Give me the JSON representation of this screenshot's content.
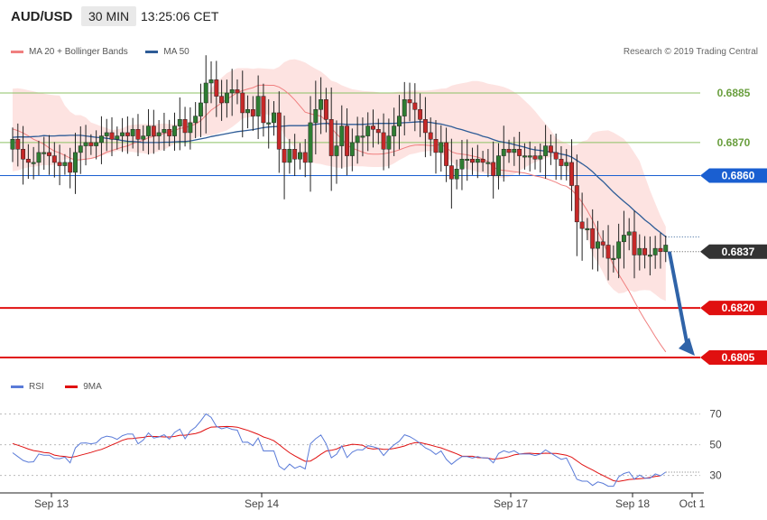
{
  "header": {
    "symbol": "AUD/USD",
    "timeframe": "30 MIN",
    "time": "13:25:06 CET"
  },
  "legend_top": {
    "ma_bb_label": "MA 20 + Bollinger Bands",
    "ma50_label": "MA 50",
    "ma_bb_color": "#f07f7f",
    "ma50_color": "#2e5c97"
  },
  "copyright": "Research © 2019 Trading Central",
  "legend_bottom": {
    "rsi_label": "RSI",
    "ma9_label": "9MA",
    "rsi_color": "#5a7bd8",
    "ma9_color": "#e01010"
  },
  "chart_data": [
    {
      "type": "candlestick",
      "y_range": [
        0.6799,
        0.6894
      ],
      "levels": [
        {
          "value": 0.6885,
          "label": "0.6885",
          "style": "green",
          "color": "#8cc265"
        },
        {
          "value": 0.687,
          "label": "0.6870",
          "style": "green",
          "color": "#8cc265"
        },
        {
          "value": 0.686,
          "label": "0.6860",
          "style": "pivot",
          "color": "#1a5fd1"
        },
        {
          "value": 0.6837,
          "label": "0.6837",
          "style": "current",
          "color": "#333333"
        },
        {
          "value": 0.682,
          "label": "0.6820",
          "style": "red",
          "color": "#e01010"
        },
        {
          "value": 0.6805,
          "label": "0.6805",
          "style": "red",
          "color": "#e01010"
        }
      ],
      "closes": [
        0.6871,
        0.6868,
        0.6865,
        0.6864,
        0.6864,
        0.6867,
        0.6867,
        0.6866,
        0.6864,
        0.6863,
        0.6864,
        0.6861,
        0.6867,
        0.6869,
        0.687,
        0.6869,
        0.687,
        0.6872,
        0.6873,
        0.6871,
        0.6872,
        0.6873,
        0.6872,
        0.6874,
        0.6871,
        0.6872,
        0.6875,
        0.6872,
        0.6873,
        0.6874,
        0.6872,
        0.6875,
        0.6877,
        0.6873,
        0.6876,
        0.6878,
        0.6882,
        0.6888,
        0.6889,
        0.6884,
        0.6882,
        0.6885,
        0.6886,
        0.6885,
        0.6879,
        0.688,
        0.6878,
        0.6884,
        0.6876,
        0.6876,
        0.6879,
        0.6868,
        0.6864,
        0.6868,
        0.6865,
        0.6867,
        0.6864,
        0.6876,
        0.688,
        0.6883,
        0.6877,
        0.6866,
        0.6869,
        0.6875,
        0.6866,
        0.687,
        0.6872,
        0.6872,
        0.6875,
        0.6874,
        0.6873,
        0.6868,
        0.6872,
        0.6875,
        0.6878,
        0.6883,
        0.6882,
        0.688,
        0.6877,
        0.6873,
        0.6871,
        0.6867,
        0.687,
        0.6863,
        0.6859,
        0.6862,
        0.6865,
        0.6865,
        0.6864,
        0.6865,
        0.6864,
        0.6864,
        0.686,
        0.6866,
        0.6868,
        0.6867,
        0.6868,
        0.6866,
        0.6866,
        0.6866,
        0.6865,
        0.6866,
        0.6869,
        0.6867,
        0.6865,
        0.6863,
        0.6864,
        0.6857,
        0.6846,
        0.6844,
        0.6844,
        0.6838,
        0.684,
        0.6839,
        0.6835,
        0.6835,
        0.684,
        0.6842,
        0.6843,
        0.6836,
        0.6838,
        0.6836,
        0.6836,
        0.6838,
        0.6837,
        0.6839
      ],
      "ma20": [
        0.68741,
        0.68736,
        0.68729,
        0.6872,
        0.6871,
        0.68703,
        0.68695,
        0.68684,
        0.68674,
        0.68669,
        0.68661,
        0.68653,
        0.68647,
        0.68648,
        0.6865,
        0.68652,
        0.68656,
        0.68663,
        0.68671,
        0.68676,
        0.68681,
        0.68686,
        0.6869,
        0.68697,
        0.68702,
        0.68707,
        0.68715,
        0.68718,
        0.68723,
        0.68728,
        0.68731,
        0.68736,
        0.68743,
        0.68745,
        0.6875,
        0.68756,
        0.68766,
        0.68782,
        0.68798,
        0.68809,
        0.6882,
        0.68831,
        0.68841,
        0.68851,
        0.68857,
        0.68862,
        0.68866,
        0.68873,
        0.68874,
        0.68873,
        0.68873,
        0.68868,
        0.68858,
        0.68845,
        0.68829,
        0.68811,
        0.68792,
        0.68787,
        0.68783,
        0.6878,
        0.68766,
        0.68744,
        0.68726,
        0.68711,
        0.68692,
        0.68683,
        0.68677,
        0.68671,
        0.68666,
        0.68665,
        0.68665,
        0.68666,
        0.68669,
        0.68673,
        0.68678,
        0.68684,
        0.68689,
        0.68692,
        0.68693,
        0.68692,
        0.68691,
        0.68691,
        0.68695,
        0.68685,
        0.68672,
        0.68667,
        0.68665,
        0.68663,
        0.68659,
        0.68656,
        0.6865,
        0.68642,
        0.68626,
        0.68618,
        0.68616,
        0.68614,
        0.68612,
        0.6861,
        0.68608,
        0.68604,
        0.68599,
        0.68596,
        0.68592,
        0.68586,
        0.6858,
        0.68572,
        0.68568,
        0.68557,
        0.6854,
        0.68519,
        0.68494,
        0.68465,
        0.68431,
        0.68398,
        0.68364,
        0.68329,
        0.68302,
        0.68276,
        0.6825,
        0.6822,
        0.68191,
        0.68164,
        0.68139,
        0.68113,
        0.68089,
        0.68067
      ],
      "ma50": [
        0.68716,
        0.68717,
        0.68717,
        0.68717,
        0.68718,
        0.68719,
        0.68721,
        0.6872,
        0.6872,
        0.68721,
        0.68721,
        0.68722,
        0.68722,
        0.68722,
        0.6872,
        0.68718,
        0.68716,
        0.68715,
        0.68713,
        0.68711,
        0.68709,
        0.68706,
        0.68704,
        0.68703,
        0.68702,
        0.687,
        0.687,
        0.687,
        0.687,
        0.68701,
        0.68701,
        0.68702,
        0.68703,
        0.68703,
        0.68705,
        0.68708,
        0.68711,
        0.68714,
        0.68718,
        0.68721,
        0.68724,
        0.68727,
        0.6873,
        0.68733,
        0.68735,
        0.68737,
        0.68739,
        0.68742,
        0.68745,
        0.68747,
        0.68748,
        0.68749,
        0.6875,
        0.68751,
        0.68751,
        0.68751,
        0.68751,
        0.68753,
        0.68755,
        0.68757,
        0.68758,
        0.68757,
        0.68756,
        0.68756,
        0.68755,
        0.68755,
        0.68755,
        0.68755,
        0.68756,
        0.68757,
        0.68758,
        0.68758,
        0.68758,
        0.68758,
        0.68759,
        0.6876,
        0.68761,
        0.68762,
        0.68763,
        0.68762,
        0.68761,
        0.68758,
        0.68756,
        0.68752,
        0.68748,
        0.68743,
        0.68739,
        0.68734,
        0.68729,
        0.68725,
        0.68719,
        0.68715,
        0.68709,
        0.68704,
        0.68701,
        0.68698,
        0.68694,
        0.6869,
        0.68686,
        0.68681,
        0.68678,
        0.68676,
        0.68674,
        0.68671,
        0.68669,
        0.68665,
        0.68662,
        0.68656,
        0.68646,
        0.68636,
        0.68625,
        0.68612,
        0.68596,
        0.68582,
        0.68566,
        0.6855,
        0.68536,
        0.68522,
        0.68509,
        0.68494,
        0.68481,
        0.68466,
        0.68454,
        0.6844,
        0.68428,
        0.68415
      ],
      "bb_upper": [
        0.68863,
        0.68864,
        0.68862,
        0.68858,
        0.68855,
        0.68851,
        0.68848,
        0.68845,
        0.68843,
        0.68842,
        0.68812,
        0.68793,
        0.68783,
        0.68783,
        0.68776,
        0.68761,
        0.68755,
        0.68749,
        0.68744,
        0.68738,
        0.6874,
        0.68743,
        0.68751,
        0.68754,
        0.68755,
        0.68756,
        0.68756,
        0.68755,
        0.68757,
        0.68758,
        0.68756,
        0.68755,
        0.68757,
        0.68763,
        0.68763,
        0.68765,
        0.68788,
        0.68826,
        0.68864,
        0.68881,
        0.68896,
        0.6891,
        0.68918,
        0.68925,
        0.68925,
        0.68925,
        0.68923,
        0.68925,
        0.68924,
        0.68923,
        0.68922,
        0.68929,
        0.68943,
        0.6895,
        0.68952,
        0.68948,
        0.68942,
        0.68932,
        0.68923,
        0.68915,
        0.68902,
        0.68887,
        0.68882,
        0.68873,
        0.68867,
        0.68861,
        0.68859,
        0.68856,
        0.68855,
        0.68854,
        0.68852,
        0.68849,
        0.68851,
        0.68852,
        0.68854,
        0.68853,
        0.68857,
        0.68857,
        0.68857,
        0.68857,
        0.68858,
        0.6886,
        0.68863,
        0.68864,
        0.68872,
        0.68876,
        0.68879,
        0.68882,
        0.68886,
        0.68886,
        0.68883,
        0.68878,
        0.68875,
        0.68872,
        0.68868,
        0.68862,
        0.68853,
        0.68842,
        0.68827,
        0.68812,
        0.68795,
        0.68775,
        0.68757,
        0.68737,
        0.68714,
        0.68705,
        0.68698,
        0.6869,
        0.68693,
        0.68704,
        0.68708,
        0.68729,
        0.68734,
        0.68736,
        0.68737,
        0.6873,
        0.68721,
        0.68711,
        0.68693,
        0.68669,
        0.68644,
        0.68599,
        0.68555,
        0.68516,
        0.68478,
        0.68446
      ],
      "bb_lower": [
        0.68613,
        0.68616,
        0.68621,
        0.68625,
        0.68627,
        0.68629,
        0.68632,
        0.68631,
        0.68633,
        0.68638,
        0.68651,
        0.68647,
        0.68645,
        0.68647,
        0.68651,
        0.68653,
        0.68655,
        0.68661,
        0.68665,
        0.68669,
        0.68675,
        0.68675,
        0.68673,
        0.68672,
        0.68669,
        0.68668,
        0.68665,
        0.68669,
        0.68674,
        0.68679,
        0.68687,
        0.68696,
        0.68698,
        0.68701,
        0.68706,
        0.68715,
        0.6872,
        0.68721,
        0.68722,
        0.68726,
        0.68732,
        0.68737,
        0.68747,
        0.68759,
        0.68773,
        0.68776,
        0.68777,
        0.68786,
        0.68787,
        0.68784,
        0.68778,
        0.68751,
        0.68722,
        0.68701,
        0.68685,
        0.68666,
        0.68649,
        0.68642,
        0.68637,
        0.68635,
        0.68631,
        0.68628,
        0.68624,
        0.68624,
        0.68626,
        0.68629,
        0.68628,
        0.68628,
        0.68627,
        0.68626,
        0.68626,
        0.68627,
        0.68629,
        0.68637,
        0.68647,
        0.68655,
        0.68664,
        0.68667,
        0.68671,
        0.68673,
        0.68675,
        0.68672,
        0.68668,
        0.68656,
        0.68642,
        0.68629,
        0.68625,
        0.6862,
        0.68616,
        0.68612,
        0.68606,
        0.68606,
        0.68597,
        0.68592,
        0.68594,
        0.68596,
        0.68604,
        0.68615,
        0.68624,
        0.68633,
        0.68641,
        0.68646,
        0.68653,
        0.68657,
        0.68658,
        0.68646,
        0.68627,
        0.68575,
        0.68513,
        0.68459,
        0.68417,
        0.6836,
        0.68336,
        0.68307,
        0.68273,
        0.68255,
        0.68244,
        0.68246,
        0.68254,
        0.68248,
        0.68253,
        0.68254,
        0.68253,
        0.68241,
        0.68228,
        0.68221
      ],
      "series": [
        {
          "name": "MA 20 + Bollinger Bands"
        },
        {
          "name": "MA 50"
        }
      ],
      "projection": {
        "from": 0.6837,
        "to": 0.6805
      }
    },
    {
      "type": "line",
      "ylim": [
        21,
        78
      ],
      "yticks": [
        70,
        50,
        30
      ],
      "x_labels": [
        "Sep 13",
        "Sep 14",
        "Sep 17",
        "Sep 18",
        "Oct 1"
      ],
      "rsi": [
        44.8,
        42.3,
        39.8,
        38.6,
        38.9,
        44.0,
        43.2,
        43.2,
        41.1,
        40.9,
        42.0,
        38.2,
        47.9,
        51.0,
        51.2,
        50.6,
        51.2,
        54.4,
        55.6,
        55.0,
        53.5,
        55.9,
        57.0,
        56.9,
        50.6,
        53.1,
        57.7,
        54.4,
        55.1,
        56.5,
        53.7,
        58.0,
        60.2,
        53.9,
        58.9,
        61.5,
        65.5,
        70.1,
        67.8,
        62.0,
        60.4,
        61.3,
        60.0,
        59.5,
        51.6,
        51.7,
        49.4,
        54.4,
        46.0,
        46.0,
        46.0,
        36.1,
        33.7,
        37.4,
        34.7,
        36.1,
        34.2,
        50.6,
        53.9,
        56.4,
        50.6,
        41.5,
        43.8,
        49.3,
        41.7,
        45.2,
        46.8,
        46.6,
        49.4,
        48.7,
        47.6,
        43.0,
        46.9,
        49.9,
        52.3,
        56.5,
        55.3,
        53.3,
        50.9,
        48.0,
        46.4,
        43.7,
        46.0,
        40.5,
        37.3,
        40.0,
        42.3,
        42.3,
        41.4,
        42.3,
        41.4,
        41.4,
        38.2,
        44.3,
        46.1,
        45.0,
        46.1,
        44.0,
        44.0,
        44.0,
        43.0,
        44.0,
        46.7,
        44.6,
        42.5,
        40.5,
        41.4,
        34.8,
        27.5,
        26.3,
        26.3,
        23.5,
        25.8,
        24.9,
        23.0,
        23.0,
        29.1,
        31.3,
        32.3,
        27.6,
        30.3,
        28.2,
        28.2,
        31.0,
        29.8,
        32.2
      ],
      "ma9": [
        50.8,
        49.7,
        48.5,
        47.2,
        46.2,
        45.7,
        45.0,
        44.7,
        43.3,
        42.7,
        42.4,
        41.8,
        42.3,
        43.2,
        44.1,
        45.0,
        46.1,
        47.0,
        48.4,
        49.9,
        51.3,
        52.9,
        53.9,
        54.1,
        54.5,
        54.8,
        55.5,
        55.4,
        55.3,
        55.1,
        55.1,
        55.4,
        56.2,
        56.2,
        56.8,
        57.3,
        58.3,
        60.1,
        61.5,
        61.6,
        61.8,
        61.9,
        61.8,
        61.4,
        60.4,
        59.4,
        58.1,
        56.8,
        55.1,
        54.0,
        52.6,
        50.1,
        47.4,
        44.8,
        42.8,
        41.0,
        39.2,
        39.4,
        41.4,
        43.8,
        45.9,
        46.4,
        47.2,
        48.9,
        49.5,
        50.3,
        50.1,
        49.7,
        47.8,
        47.2,
        47.5,
        47.0,
        47.1,
        47.6,
        48.3,
        49.2,
        50.5,
        51.3,
        51.4,
        50.6,
        49.8,
        48.8,
        48.0,
        46.7,
        45.4,
        44.1,
        42.6,
        42.5,
        42.5,
        41.6,
        41.5,
        41.3,
        40.5,
        41.0,
        41.5,
        42.3,
        43.4,
        43.9,
        44.4,
        44.5,
        44.2,
        44.2,
        44.5,
        44.4,
        44.4,
        43.8,
        43.2,
        41.9,
        39.5,
        37.1,
        35.3,
        33.6,
        31.7,
        30.0,
        28.3,
        26.6,
        26.2,
        26.7,
        27.4,
        27.6,
        27.9,
        28.2,
        28.7,
        29.4,
        29.8
      ],
      "series": [
        {
          "name": "RSI"
        },
        {
          "name": "9MA"
        }
      ]
    }
  ]
}
